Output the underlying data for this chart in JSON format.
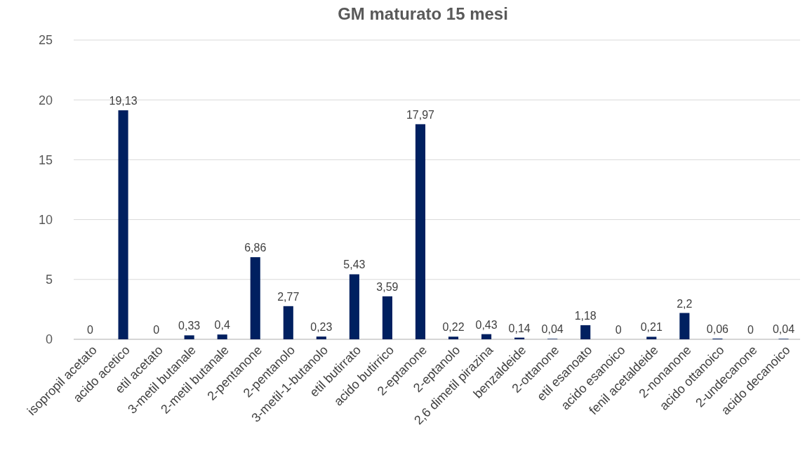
{
  "chart_data": {
    "type": "bar",
    "title": "GM maturato 15 mesi",
    "categories": [
      "isopropil acetato",
      "acido acetico",
      "etil acetato",
      "3-metil butanale",
      "2-metil butanale",
      "2-pentanone",
      "2-pentanolo",
      "3-metil-1-butanolo",
      "etil butirrato",
      "acido butirrico",
      "2-eptanone",
      "2-eptanolo",
      "2,6 dimetil pirazina",
      "benzaldeide",
      "2-ottanone",
      "etil esanoato",
      "acido esanoico",
      "fenil acetaldeide",
      "2-nonanone",
      "acido ottanoico",
      "2-undecanone",
      "acido decanoico"
    ],
    "values": [
      0,
      19.13,
      0,
      0.33,
      0.4,
      6.86,
      2.77,
      0.23,
      5.43,
      3.59,
      17.97,
      0.22,
      0.43,
      0.14,
      0.04,
      1.18,
      0,
      0.21,
      2.2,
      0.06,
      0,
      0.04
    ],
    "value_labels": [
      "0",
      "19,13",
      "0",
      "0,33",
      "0,4",
      "6,86",
      "2,77",
      "0,23",
      "5,43",
      "3,59",
      "17,97",
      "0,22",
      "0,43",
      "0,14",
      "0,04",
      "1,18",
      "0",
      "0,21",
      "2,2",
      "0,06",
      "0",
      "0,04"
    ],
    "color": "#002060",
    "ylim": [
      0,
      25
    ],
    "yticks": [
      0,
      5,
      10,
      15,
      20,
      25
    ],
    "grid": "y"
  }
}
